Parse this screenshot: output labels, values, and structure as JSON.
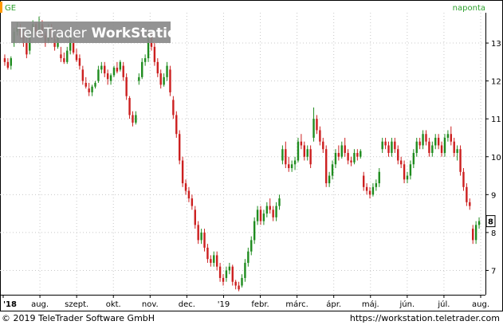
{
  "chart_data": {
    "type": "candlestick",
    "symbol": "GE",
    "period_label": "naponta",
    "watermark": {
      "prefix": "TeleTrader",
      "suffix": "WorkStation"
    },
    "footer": {
      "copyright": "© 2019 TeleTrader Software GmbH",
      "url": "https://workstation.teletrader.com"
    },
    "ylim": [
      6.4,
      13.8
    ],
    "y_ticks": [
      7,
      8,
      9,
      10,
      11,
      12,
      13
    ],
    "x_tick_labels": [
      "'18",
      "aug.",
      "szept.",
      "okt.",
      "nov.",
      "dec.",
      "'19",
      "febr.",
      "márc.",
      "ápr.",
      "máj.",
      "jún.",
      "júl.",
      "aug."
    ],
    "last_value_label": "8",
    "colors": {
      "up": "#1f8c1f",
      "down": "#cc1f1f",
      "grid": "#c8c8c8",
      "accent": "#2ca02c",
      "marker": "#ff9900"
    },
    "series": [
      {
        "ohlc": [
          [
            12.6,
            12.7,
            12.4,
            12.5
          ],
          [
            12.5,
            12.6,
            12.3,
            12.35
          ],
          [
            12.4,
            12.65,
            12.3,
            12.6
          ],
          [
            13.0,
            13.4,
            12.9,
            13.3
          ],
          [
            13.3,
            13.55,
            13.2,
            13.4
          ],
          [
            13.4,
            13.5,
            13.1,
            13.2
          ],
          [
            13.2,
            13.35,
            12.9,
            13.0
          ],
          [
            13.0,
            13.15,
            12.6,
            12.7
          ],
          [
            12.8,
            13.3,
            12.7,
            13.25
          ],
          [
            13.3,
            13.6,
            13.2,
            13.5
          ],
          [
            13.5,
            13.55,
            13.2,
            13.3
          ],
          [
            13.35,
            13.7,
            13.3,
            13.55
          ],
          [
            13.5,
            13.6,
            13.15,
            13.2
          ],
          [
            13.2,
            13.3,
            12.9,
            13.0
          ],
          [
            13.05,
            13.5,
            13.0,
            13.4
          ],
          [
            13.4,
            13.5,
            13.1,
            13.15
          ],
          [
            13.1,
            13.2,
            12.8,
            12.9
          ],
          [
            12.9,
            13.25,
            12.85,
            13.15
          ],
          [
            12.7,
            12.9,
            12.5,
            12.6
          ],
          [
            12.6,
            12.75,
            12.45,
            12.5
          ],
          [
            12.5,
            12.9,
            12.45,
            12.8
          ],
          [
            12.8,
            13.3,
            12.7,
            13.2
          ],
          [
            13.0,
            13.1,
            12.7,
            12.75
          ],
          [
            12.7,
            12.85,
            12.5,
            12.55
          ],
          [
            12.6,
            12.7,
            12.3,
            12.4
          ],
          [
            12.3,
            12.4,
            11.9,
            12.0
          ],
          [
            11.95,
            12.1,
            11.8,
            11.85
          ],
          [
            11.8,
            11.95,
            11.6,
            11.7
          ],
          [
            11.7,
            11.9,
            11.6,
            11.85
          ],
          [
            11.85,
            12.0,
            11.8,
            11.95
          ],
          [
            12.0,
            12.4,
            11.95,
            12.3
          ],
          [
            12.3,
            12.5,
            12.2,
            12.4
          ],
          [
            12.4,
            12.5,
            12.1,
            12.2
          ],
          [
            12.2,
            12.3,
            11.9,
            12.05
          ],
          [
            12.0,
            12.2,
            11.9,
            12.15
          ],
          [
            12.15,
            12.4,
            12.1,
            12.35
          ],
          [
            12.35,
            12.5,
            12.2,
            12.25
          ],
          [
            12.3,
            12.55,
            12.25,
            12.5
          ],
          [
            12.4,
            12.5,
            12.0,
            12.1
          ],
          [
            12.1,
            12.2,
            11.5,
            11.6
          ],
          [
            11.55,
            11.6,
            11.0,
            11.1
          ],
          [
            11.1,
            11.2,
            10.8,
            10.9
          ],
          [
            10.9,
            11.2,
            10.85,
            11.1
          ],
          [
            12.0,
            12.2,
            11.9,
            12.1
          ],
          [
            12.1,
            12.6,
            12.05,
            12.5
          ],
          [
            12.5,
            12.7,
            12.4,
            12.6
          ],
          [
            12.6,
            13.3,
            12.5,
            13.2
          ],
          [
            13.2,
            13.25,
            12.8,
            12.9
          ],
          [
            12.9,
            13.0,
            12.4,
            12.5
          ],
          [
            12.5,
            12.6,
            12.1,
            12.2
          ],
          [
            12.2,
            12.3,
            11.8,
            11.9
          ],
          [
            11.9,
            12.2,
            11.85,
            12.1
          ],
          [
            12.1,
            12.5,
            12.0,
            12.4
          ],
          [
            12.3,
            12.4,
            11.6,
            11.7
          ],
          [
            11.5,
            11.6,
            11.0,
            11.1
          ],
          [
            11.1,
            11.2,
            10.5,
            10.6
          ],
          [
            10.6,
            10.7,
            9.8,
            9.9
          ],
          [
            9.9,
            10.0,
            9.2,
            9.3
          ],
          [
            9.3,
            9.4,
            9.0,
            9.1
          ],
          [
            9.1,
            9.2,
            8.8,
            8.9
          ],
          [
            8.9,
            9.0,
            8.6,
            8.7
          ],
          [
            8.6,
            8.7,
            8.1,
            8.2
          ],
          [
            8.2,
            8.3,
            7.7,
            7.8
          ],
          [
            7.8,
            8.1,
            7.7,
            8.0
          ],
          [
            8.0,
            8.1,
            7.5,
            7.6
          ],
          [
            7.6,
            7.7,
            7.2,
            7.3
          ],
          [
            7.3,
            7.4,
            7.1,
            7.2
          ],
          [
            7.2,
            7.5,
            7.1,
            7.4
          ],
          [
            7.4,
            7.5,
            7.0,
            7.1
          ],
          [
            7.1,
            7.2,
            6.7,
            6.8
          ],
          [
            6.8,
            6.9,
            6.6,
            6.7
          ],
          [
            6.8,
            7.1,
            6.7,
            7.0
          ],
          [
            7.0,
            7.2,
            6.9,
            7.1
          ],
          [
            7.1,
            7.15,
            6.6,
            6.7
          ],
          [
            6.7,
            6.75,
            6.5,
            6.6
          ],
          [
            6.6,
            6.7,
            6.45,
            6.5
          ],
          [
            6.6,
            6.9,
            6.55,
            6.8
          ],
          [
            6.8,
            7.3,
            6.7,
            7.2
          ],
          [
            7.2,
            7.6,
            7.1,
            7.5
          ],
          [
            7.5,
            7.9,
            7.4,
            7.8
          ],
          [
            7.8,
            8.4,
            7.7,
            8.3
          ],
          [
            8.3,
            8.7,
            8.2,
            8.6
          ],
          [
            8.6,
            8.7,
            8.2,
            8.3
          ],
          [
            8.3,
            8.6,
            8.2,
            8.5
          ],
          [
            8.5,
            8.8,
            8.4,
            8.7
          ],
          [
            8.7,
            8.9,
            8.5,
            8.6
          ],
          [
            8.6,
            8.7,
            8.3,
            8.4
          ],
          [
            8.4,
            8.8,
            8.3,
            8.7
          ],
          [
            8.7,
            9.0,
            8.6,
            8.9
          ],
          [
            9.9,
            10.3,
            9.8,
            10.2
          ],
          [
            10.2,
            10.4,
            9.7,
            9.8
          ],
          [
            9.8,
            10.0,
            9.6,
            9.7
          ],
          [
            9.7,
            9.9,
            9.6,
            9.8
          ],
          [
            9.8,
            10.0,
            9.65,
            9.9
          ],
          [
            9.9,
            10.5,
            9.85,
            10.4
          ],
          [
            10.4,
            10.6,
            10.2,
            10.3
          ],
          [
            10.3,
            10.4,
            9.9,
            10.0
          ],
          [
            10.0,
            10.3,
            9.9,
            10.2
          ],
          [
            10.2,
            10.3,
            9.7,
            9.8
          ],
          [
            10.5,
            11.3,
            10.4,
            11.0
          ],
          [
            11.0,
            11.1,
            10.6,
            10.7
          ],
          [
            10.7,
            10.8,
            10.3,
            10.4
          ],
          [
            10.4,
            10.5,
            10.1,
            10.2
          ],
          [
            10.2,
            10.3,
            9.2,
            9.3
          ],
          [
            9.3,
            9.6,
            9.2,
            9.5
          ],
          [
            9.5,
            9.9,
            9.4,
            9.8
          ],
          [
            9.8,
            10.2,
            9.7,
            10.1
          ],
          [
            10.1,
            10.3,
            9.9,
            10.0
          ],
          [
            10.0,
            10.4,
            9.95,
            10.3
          ],
          [
            10.3,
            10.5,
            10.0,
            10.1
          ],
          [
            10.1,
            10.2,
            9.8,
            9.9
          ],
          [
            9.9,
            10.0,
            9.75,
            9.85
          ],
          [
            9.85,
            10.2,
            9.8,
            10.1
          ],
          [
            10.1,
            10.2,
            9.9,
            10.0
          ],
          [
            10.0,
            10.2,
            9.95,
            10.15
          ],
          [
            9.5,
            9.6,
            9.1,
            9.2
          ],
          [
            9.2,
            9.3,
            9.0,
            9.1
          ],
          [
            9.1,
            9.2,
            8.9,
            9.0
          ],
          [
            9.0,
            9.3,
            8.95,
            9.2
          ],
          [
            9.2,
            9.4,
            9.1,
            9.3
          ],
          [
            9.3,
            9.7,
            9.2,
            9.6
          ],
          [
            10.2,
            10.5,
            10.1,
            10.4
          ],
          [
            10.4,
            10.5,
            10.2,
            10.3
          ],
          [
            10.3,
            10.4,
            10.0,
            10.1
          ],
          [
            10.1,
            10.5,
            10.0,
            10.4
          ],
          [
            10.4,
            10.5,
            10.1,
            10.2
          ],
          [
            10.2,
            10.3,
            9.8,
            9.9
          ],
          [
            9.9,
            10.0,
            9.7,
            9.8
          ],
          [
            9.8,
            9.9,
            9.3,
            9.4
          ],
          [
            9.4,
            9.6,
            9.3,
            9.5
          ],
          [
            9.5,
            9.9,
            9.4,
            9.8
          ],
          [
            9.8,
            10.2,
            9.7,
            10.1
          ],
          [
            10.1,
            10.5,
            10.0,
            10.4
          ],
          [
            10.4,
            10.5,
            10.2,
            10.3
          ],
          [
            10.3,
            10.7,
            10.2,
            10.6
          ],
          [
            10.6,
            10.7,
            10.3,
            10.4
          ],
          [
            10.4,
            10.5,
            10.0,
            10.1
          ],
          [
            10.1,
            10.4,
            10.0,
            10.3
          ],
          [
            10.3,
            10.6,
            10.2,
            10.5
          ],
          [
            10.5,
            10.6,
            10.2,
            10.3
          ],
          [
            10.3,
            10.4,
            10.0,
            10.1
          ],
          [
            10.1,
            10.6,
            10.0,
            10.5
          ],
          [
            10.5,
            10.7,
            10.4,
            10.6
          ],
          [
            10.6,
            10.8,
            10.3,
            10.4
          ],
          [
            10.4,
            10.5,
            10.0,
            10.1
          ],
          [
            10.1,
            10.3,
            9.9,
            10.2
          ],
          [
            10.2,
            10.3,
            9.5,
            9.6
          ],
          [
            9.6,
            9.7,
            9.1,
            9.2
          ],
          [
            9.2,
            9.3,
            8.7,
            8.8
          ],
          [
            8.8,
            8.9,
            8.6,
            8.7
          ],
          [
            8.1,
            8.2,
            7.7,
            7.8
          ],
          [
            7.8,
            8.3,
            7.7,
            8.2
          ],
          [
            8.2,
            8.4,
            8.1,
            8.3
          ]
        ]
      }
    ]
  }
}
